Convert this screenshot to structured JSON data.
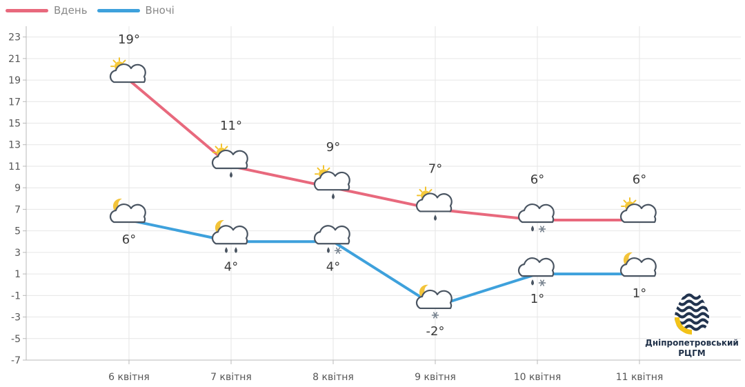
{
  "legend": {
    "day_label": "Вдень",
    "night_label": "Вночі"
  },
  "colors": {
    "day": "#e8697d",
    "night": "#3ea1dc",
    "grid": "#e6e6e6",
    "axis": "#b8b8b8",
    "text": "#555555"
  },
  "logo": {
    "line1": "Дніпропетровський",
    "line2": "РЦГМ"
  },
  "chart_data": {
    "type": "line",
    "categories": [
      "6 квітня",
      "7 квітня",
      "8 квітня",
      "9 квітня",
      "10 квітня",
      "11 квітня"
    ],
    "ylim": [
      -7,
      24
    ],
    "yticks": [
      -7,
      -5,
      -3,
      -1,
      1,
      3,
      5,
      7,
      9,
      11,
      13,
      15,
      17,
      19,
      21,
      23
    ],
    "grid": true,
    "legend_position": "top-left",
    "series": [
      {
        "name": "Вдень",
        "values": [
          19,
          11,
          9,
          7,
          6,
          6
        ],
        "labels": [
          "19°",
          "11°",
          "9°",
          "7°",
          "6°",
          "6°"
        ],
        "icons": [
          "sun-cloud-icon",
          "sun-cloud-rain-icon",
          "sun-cloud-rain-icon",
          "sun-cloud-rain-icon",
          "cloud-rain-snow-icon",
          "sun-cloud-icon"
        ]
      },
      {
        "name": "Вночі",
        "values": [
          6,
          4,
          4,
          -2,
          1,
          1
        ],
        "labels": [
          "6°",
          "4°",
          "4°",
          "-2°",
          "1°",
          "1°"
        ],
        "icons": [
          "moon-cloud-icon",
          "moon-cloud-rain-icon",
          "cloud-rain-snow-icon",
          "moon-cloud-snow-icon",
          "cloud-rain-snow-icon",
          "moon-cloud-icon"
        ]
      }
    ]
  }
}
